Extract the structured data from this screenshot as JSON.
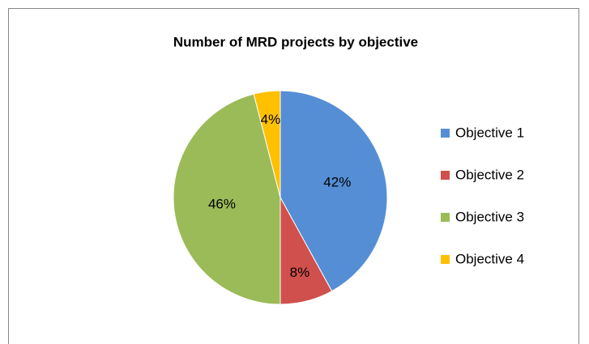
{
  "chart_data": {
    "type": "pie",
    "title": "Number of MRD projects by objective",
    "categories": [
      "Objective 1",
      "Objective 2",
      "Objective 3",
      "Objective 4"
    ],
    "values": [
      42,
      8,
      46,
      4
    ],
    "value_labels": [
      "42%",
      "8%",
      "46%",
      "4%"
    ],
    "colors": [
      "#558ed5",
      "#d0504d",
      "#9bbb59",
      "#ffc000"
    ],
    "legend": "right"
  }
}
